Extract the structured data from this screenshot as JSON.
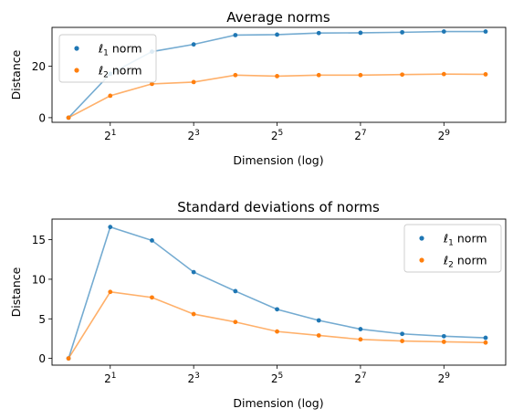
{
  "chart_data": [
    {
      "type": "line",
      "title": "Average norms",
      "xlabel": "Dimension (log)",
      "ylabel": "Distance",
      "xscale": "log2",
      "xlim": [
        0.76,
        1430
      ],
      "ylim": [
        -1.8,
        35.0
      ],
      "x": [
        1,
        2,
        4,
        8,
        16,
        32,
        64,
        128,
        256,
        512,
        1024
      ],
      "xticks": [
        2,
        8,
        32,
        128,
        512
      ],
      "xtick_labels": [
        {
          "base": "2",
          "exp": "1"
        },
        {
          "base": "2",
          "exp": "3"
        },
        {
          "base": "2",
          "exp": "5"
        },
        {
          "base": "2",
          "exp": "7"
        },
        {
          "base": "2",
          "exp": "9"
        }
      ],
      "yticks": [
        0,
        20
      ],
      "ytick_labels": [
        "0",
        "20"
      ],
      "legend_position": "upper-left",
      "series": [
        {
          "name": "ℓ1 norm",
          "label_base": "ℓ",
          "label_sub": "1",
          "label_rest": " norm",
          "marker_color": "#1f77b4",
          "line_color": "#1f77b4",
          "values": [
            0,
            17.0,
            25.6,
            28.4,
            32.0,
            32.2,
            32.8,
            32.9,
            33.1,
            33.4,
            33.4
          ]
        },
        {
          "name": "ℓ2 norm",
          "label_base": "ℓ",
          "label_sub": "2",
          "label_rest": " norm",
          "marker_color": "#ff7f0e",
          "line_color": "#ff7f0e",
          "values": [
            0,
            8.5,
            13.1,
            13.8,
            16.5,
            16.1,
            16.5,
            16.5,
            16.7,
            16.9,
            16.8
          ]
        }
      ]
    },
    {
      "type": "line",
      "title": "Standard deviations of norms",
      "xlabel": "Dimension (log)",
      "ylabel": "Distance",
      "xscale": "log2",
      "xlim": [
        0.76,
        1430
      ],
      "ylim": [
        -0.85,
        17.6
      ],
      "x": [
        1,
        2,
        4,
        8,
        16,
        32,
        64,
        128,
        256,
        512,
        1024
      ],
      "xticks": [
        2,
        8,
        32,
        128,
        512
      ],
      "xtick_labels": [
        {
          "base": "2",
          "exp": "1"
        },
        {
          "base": "2",
          "exp": "3"
        },
        {
          "base": "2",
          "exp": "5"
        },
        {
          "base": "2",
          "exp": "7"
        },
        {
          "base": "2",
          "exp": "9"
        }
      ],
      "yticks": [
        0,
        5,
        10,
        15
      ],
      "ytick_labels": [
        "0",
        "5",
        "10",
        "15"
      ],
      "legend_position": "upper-right",
      "series": [
        {
          "name": "ℓ1 norm",
          "label_base": "ℓ",
          "label_sub": "1",
          "label_rest": " norm",
          "marker_color": "#1f77b4",
          "line_color": "#1f77b4",
          "values": [
            0,
            16.6,
            14.9,
            10.9,
            8.5,
            6.2,
            4.8,
            3.7,
            3.1,
            2.8,
            2.6
          ]
        },
        {
          "name": "ℓ2 norm",
          "label_base": "ℓ",
          "label_sub": "2",
          "label_rest": " norm",
          "marker_color": "#ff7f0e",
          "line_color": "#ff7f0e",
          "values": [
            0,
            8.4,
            7.7,
            5.6,
            4.6,
            3.4,
            2.9,
            2.4,
            2.2,
            2.1,
            2.0
          ]
        }
      ]
    }
  ]
}
